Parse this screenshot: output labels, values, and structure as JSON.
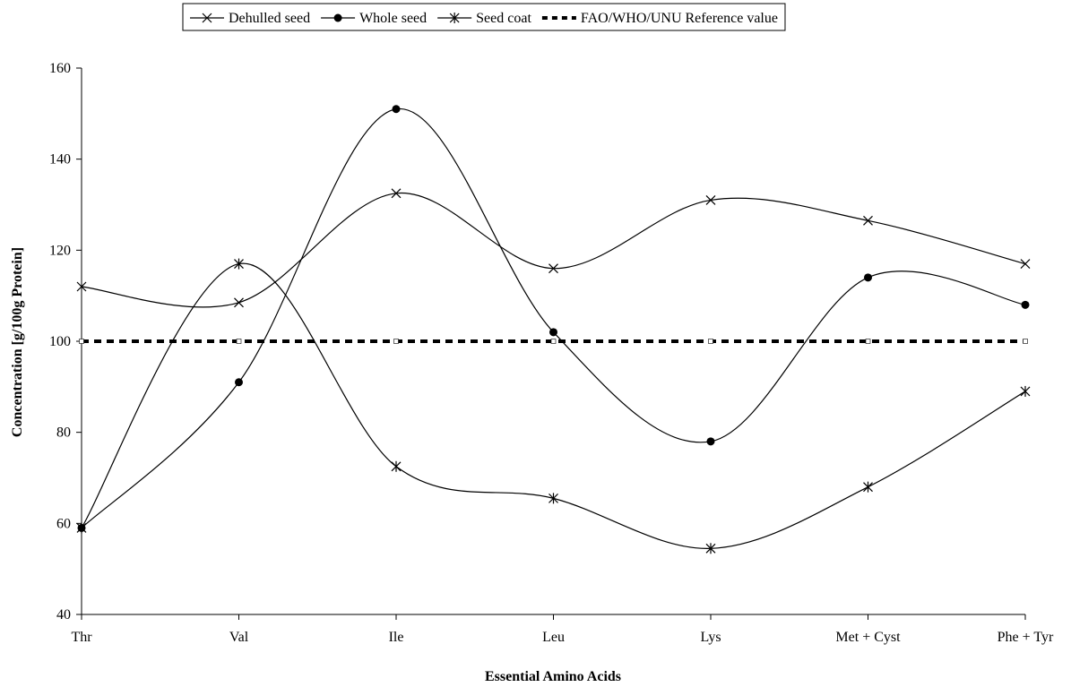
{
  "chart_data": {
    "type": "line",
    "title": "",
    "xlabel": "Essential Amino Acids",
    "ylabel": "Concentration [g/100g Protein]",
    "categories": [
      "Thr",
      "Val",
      "Ile",
      "Leu",
      "Lys",
      "Met + Cyst",
      "Phe + Tyr"
    ],
    "ylim": [
      40,
      160
    ],
    "yticks": [
      "40",
      "60",
      "80",
      "100",
      "120",
      "140",
      "160"
    ],
    "grid": false,
    "legend_position": "top",
    "series": [
      {
        "name": "Dehulled seed",
        "marker": "x",
        "line": "smooth-solid",
        "color": "#000000",
        "values": [
          112,
          108.5,
          132.5,
          116,
          131,
          126.5,
          117
        ]
      },
      {
        "name": "Whole seed",
        "marker": "circle",
        "line": "smooth-solid",
        "color": "#000000",
        "values": [
          59,
          91,
          151,
          102,
          78,
          114,
          108
        ]
      },
      {
        "name": "Seed coat",
        "marker": "asterisk",
        "line": "smooth-solid",
        "color": "#000000",
        "values": [
          59,
          117,
          72.5,
          65.5,
          54.5,
          68,
          89
        ]
      },
      {
        "name": "FAO/WHO/UNU Reference value",
        "marker": "square",
        "line": "dotted",
        "color": "#000000",
        "values": [
          100,
          100,
          100,
          100,
          100,
          100,
          100
        ]
      }
    ]
  }
}
